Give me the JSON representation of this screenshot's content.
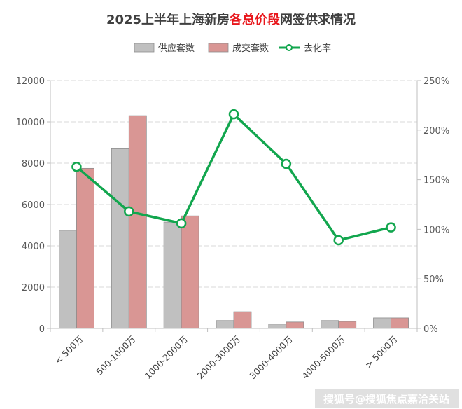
{
  "chart_data": {
    "type": "bar",
    "title_parts": [
      "2025上半年上海新房",
      "各总价段",
      "网签供求情况"
    ],
    "title_highlight_color": "#e8161b",
    "categories": [
      "< 500万",
      "500-1000万",
      "1000-2000万",
      "2000-3000万",
      "3000-4000万",
      "4000-5000万",
      "> 5000万"
    ],
    "series": [
      {
        "name": "供应套数",
        "type": "bar",
        "axis": "left",
        "color": "#c0c0c0",
        "values": [
          4750,
          8700,
          5150,
          380,
          210,
          380,
          510
        ]
      },
      {
        "name": "成交套数",
        "type": "bar",
        "axis": "left",
        "color": "#d99694",
        "values": [
          7750,
          10300,
          5450,
          810,
          310,
          340,
          510
        ]
      },
      {
        "name": "去化率",
        "type": "line",
        "axis": "right",
        "color": "#12a64e",
        "values": [
          163,
          118,
          106,
          216,
          166,
          89,
          102
        ]
      }
    ],
    "yleft": {
      "min": 0,
      "max": 12000,
      "ticks": [
        "0",
        "2000",
        "4000",
        "6000",
        "8000",
        "10000",
        "12000"
      ]
    },
    "yright": {
      "min": 0,
      "max": 250,
      "ticks": [
        "0%",
        "50%",
        "100%",
        "150%",
        "200%",
        "250%"
      ]
    },
    "grid": true,
    "legend": "top-center"
  },
  "watermark": "搜狐号@搜狐焦点嘉洽关站"
}
